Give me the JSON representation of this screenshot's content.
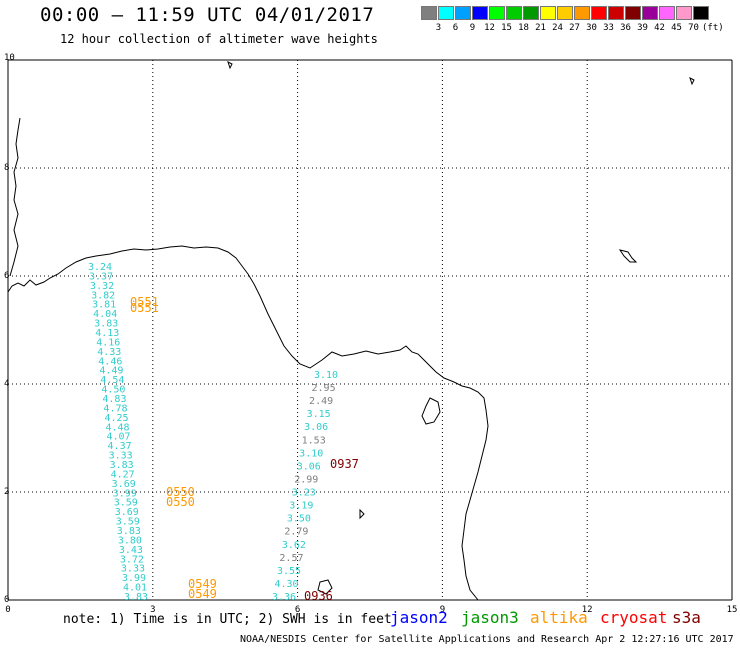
{
  "header": {
    "title": "00:00 — 11:59 UTC 04/01/2017",
    "subtitle": "12 hour collection of altimeter wave heights"
  },
  "legend": {
    "colors": [
      "#7f7f7f",
      "#00ffff",
      "#00a0ff",
      "#0000ff",
      "#00ff00",
      "#00cc00",
      "#009900",
      "#ffff00",
      "#ffcc00",
      "#ff9900",
      "#ff0000",
      "#cc0000",
      "#800000",
      "#990099",
      "#ff66ff",
      "#ff99cc",
      "#000000"
    ],
    "labels": [
      "3",
      "6",
      "9",
      "12",
      "15",
      "18",
      "21",
      "24",
      "27",
      "30",
      "33",
      "36",
      "39",
      "42",
      "45",
      "70"
    ],
    "unit": "(ft)"
  },
  "axes": {
    "y_labels": [
      "10",
      "8",
      "6",
      "4",
      "2",
      "0"
    ],
    "x_labels": [
      "0",
      "3",
      "6",
      "9",
      "12",
      "15"
    ]
  },
  "tracks": {
    "left_values": [
      "3.24",
      "3.37",
      "3.32",
      "3.82",
      "3.81",
      "4.04",
      "3.83",
      "4.13",
      "4.16",
      "4.33",
      "4.46",
      "4.49",
      "4.54",
      "4.50",
      "4.83",
      "4.78",
      "4.25",
      "4.48",
      "4.07",
      "4.37",
      "3.33",
      "3.83",
      "4.27",
      "3.69",
      "3.99",
      "3.59",
      "3.69",
      "3.59",
      "3.83",
      "3.80",
      "3.43",
      "3.72",
      "3.33",
      "3.99",
      "4.01",
      "3.83"
    ],
    "right_values": [
      {
        "v": "3.10",
        "c": "#33cccc"
      },
      {
        "v": "2.95",
        "c": "#7f7f7f"
      },
      {
        "v": "2.49",
        "c": "#7f7f7f"
      },
      {
        "v": "3.15",
        "c": "#33cccc"
      },
      {
        "v": "3.06",
        "c": "#33cccc"
      },
      {
        "v": "1.53",
        "c": "#7f7f7f"
      },
      {
        "v": "3.10",
        "c": "#33cccc"
      },
      {
        "v": "3.06",
        "c": "#33cccc"
      },
      {
        "v": "2.99",
        "c": "#7f7f7f"
      },
      {
        "v": "3.23",
        "c": "#33cccc"
      },
      {
        "v": "3.19",
        "c": "#33cccc"
      },
      {
        "v": "3.50",
        "c": "#33cccc"
      },
      {
        "v": "2.79",
        "c": "#7f7f7f"
      },
      {
        "v": "3.62",
        "c": "#33cccc"
      },
      {
        "v": "2.57",
        "c": "#7f7f7f"
      },
      {
        "v": "3.55",
        "c": "#33cccc"
      },
      {
        "v": "4.30",
        "c": "#33cccc"
      },
      {
        "v": "3.36",
        "c": "#33cccc"
      }
    ],
    "times": [
      {
        "t": "0551",
        "c": "#ff9900"
      },
      {
        "t": "0551",
        "c": "#ff9900"
      },
      {
        "t": "0550",
        "c": "#ff9900"
      },
      {
        "t": "0550",
        "c": "#ff9900"
      },
      {
        "t": "0549",
        "c": "#ff9900"
      },
      {
        "t": "0549",
        "c": "#ff9900"
      },
      {
        "t": "0937",
        "c": "#800000"
      },
      {
        "t": "0936",
        "c": "#800000"
      }
    ]
  },
  "footer": {
    "note": "note: 1) Time is in UTC; 2) SWH is in feet",
    "satellites": [
      {
        "name": "jason2",
        "color": "#0000ff"
      },
      {
        "name": "jason3",
        "color": "#009900"
      },
      {
        "name": "altika",
        "color": "#ff9900"
      },
      {
        "name": "cryosat",
        "color": "#ff0000"
      },
      {
        "name": "s3a",
        "color": "#800000"
      }
    ],
    "credit": "NOAA/NESDIS Center for Satellite Applications and Research   Apr  2 12:27:16 UTC 2017"
  }
}
